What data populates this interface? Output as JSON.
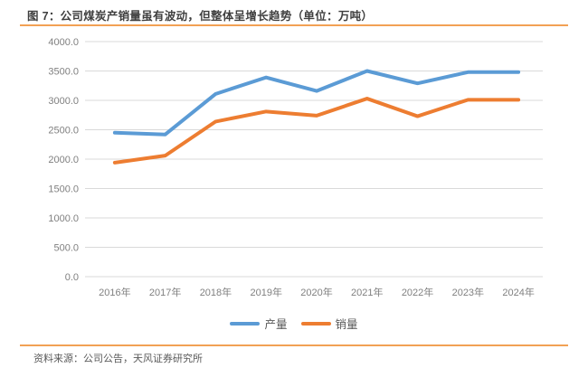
{
  "figure": {
    "title": "图 7：公司煤炭产销量虽有波动，但整体呈增长趋势（单位：万吨）",
    "source": "资料来源：公司公告，天风证券研究所"
  },
  "colors": {
    "accent_rule": "#F2A154",
    "grid_line": "#D9D9D9",
    "axis_label": "#808080",
    "legend_text": "#595959",
    "title_text": "#3F3F3F",
    "source_text": "#595959",
    "production_line": "#5B9BD5",
    "sales_line": "#ED7D31"
  },
  "chart_data": {
    "type": "line",
    "title": "图 7：公司煤炭产销量虽有波动，但整体呈增长趋势（单位：万吨）",
    "unit": "万吨",
    "categories": [
      "2016年",
      "2017年",
      "2018年",
      "2019年",
      "2020年",
      "2021年",
      "2022年",
      "2023年",
      "2024年"
    ],
    "series": [
      {
        "id": "production",
        "name": "产量",
        "color": "#5B9BD5",
        "values": [
          2450,
          2420,
          3110,
          3390,
          3160,
          3500,
          3290,
          3480,
          3480
        ]
      },
      {
        "id": "sales",
        "name": "销量",
        "color": "#ED7D31",
        "values": [
          1940,
          2060,
          2640,
          2810,
          2740,
          3030,
          2730,
          3010,
          3010
        ]
      }
    ],
    "ylim": [
      0,
      4000
    ],
    "yticks": [
      "0.0",
      "500.0",
      "1000.0",
      "1500.0",
      "2000.0",
      "2500.0",
      "3000.0",
      "3500.0",
      "4000.0"
    ],
    "xlabel": "",
    "ylabel": "",
    "grid": "horizontal",
    "legend_position": "bottom"
  }
}
